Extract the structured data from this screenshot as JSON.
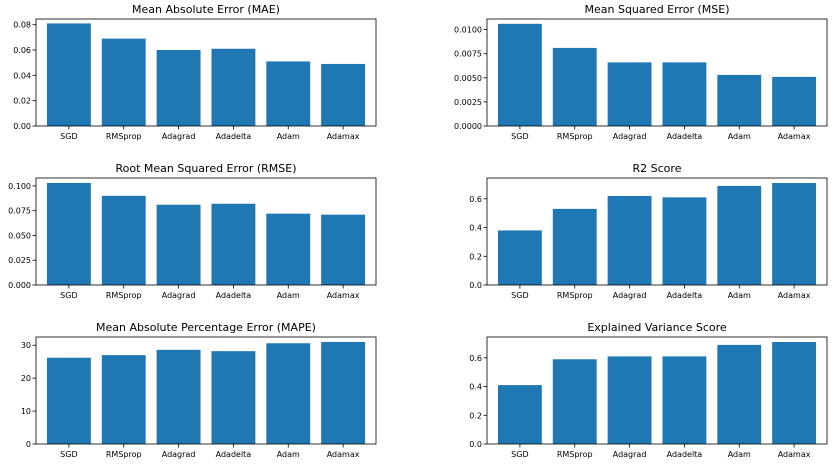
{
  "chart_data": [
    {
      "type": "bar",
      "title": "Mean Absolute Error (MAE)",
      "categories": [
        "SGD",
        "RMSprop",
        "Adagrad",
        "Adadelta",
        "Adam",
        "Adamax"
      ],
      "values": [
        0.081,
        0.069,
        0.06,
        0.061,
        0.051,
        0.049
      ],
      "ylim": [
        0,
        0.0845
      ],
      "yticks": [
        0.0,
        0.02,
        0.04,
        0.06,
        0.08
      ],
      "ytick_labels": [
        "0.00",
        "0.02",
        "0.04",
        "0.06",
        "0.08"
      ],
      "color": "#1f77b4",
      "xlabel": "",
      "ylabel": ""
    },
    {
      "type": "bar",
      "title": "Mean Squared Error (MSE)",
      "categories": [
        "SGD",
        "RMSprop",
        "Adagrad",
        "Adadelta",
        "Adam",
        "Adamax"
      ],
      "values": [
        0.0106,
        0.0081,
        0.0066,
        0.0066,
        0.0053,
        0.0051
      ],
      "ylim": [
        0,
        0.0111
      ],
      "yticks": [
        0.0,
        0.0025,
        0.005,
        0.0075,
        0.01
      ],
      "ytick_labels": [
        "0.0000",
        "0.0025",
        "0.0050",
        "0.0075",
        "0.0100"
      ],
      "color": "#1f77b4",
      "xlabel": "",
      "ylabel": ""
    },
    {
      "type": "bar",
      "title": "Root Mean Squared Error (RMSE)",
      "categories": [
        "SGD",
        "RMSprop",
        "Adagrad",
        "Adadelta",
        "Adam",
        "Adamax"
      ],
      "values": [
        0.103,
        0.09,
        0.081,
        0.082,
        0.072,
        0.071
      ],
      "ylim": [
        0,
        0.108
      ],
      "yticks": [
        0.0,
        0.025,
        0.05,
        0.075,
        0.1
      ],
      "ytick_labels": [
        "0.000",
        "0.025",
        "0.050",
        "0.075",
        "0.100"
      ],
      "color": "#1f77b4",
      "xlabel": "",
      "ylabel": ""
    },
    {
      "type": "bar",
      "title": "R2 Score",
      "categories": [
        "SGD",
        "RMSprop",
        "Adagrad",
        "Adadelta",
        "Adam",
        "Adamax"
      ],
      "values": [
        0.38,
        0.53,
        0.62,
        0.61,
        0.69,
        0.71
      ],
      "ylim": [
        0,
        0.745
      ],
      "yticks": [
        0.0,
        0.2,
        0.4,
        0.6
      ],
      "ytick_labels": [
        "0.0",
        "0.2",
        "0.4",
        "0.6"
      ],
      "color": "#1f77b4",
      "xlabel": "",
      "ylabel": ""
    },
    {
      "type": "bar",
      "title": "Mean Absolute Percentage Error (MAPE)",
      "categories": [
        "SGD",
        "RMSprop",
        "Adagrad",
        "Adadelta",
        "Adam",
        "Adamax"
      ],
      "values": [
        26.2,
        27.0,
        28.6,
        28.2,
        30.6,
        31.0
      ],
      "ylim": [
        0,
        32.5
      ],
      "yticks": [
        0,
        10,
        20,
        30
      ],
      "ytick_labels": [
        "0",
        "10",
        "20",
        "30"
      ],
      "color": "#1f77b4",
      "xlabel": "",
      "ylabel": ""
    },
    {
      "type": "bar",
      "title": "Explained Variance Score",
      "categories": [
        "SGD",
        "RMSprop",
        "Adagrad",
        "Adadelta",
        "Adam",
        "Adamax"
      ],
      "values": [
        0.41,
        0.59,
        0.61,
        0.61,
        0.69,
        0.71
      ],
      "ylim": [
        0,
        0.745
      ],
      "yticks": [
        0.0,
        0.2,
        0.4,
        0.6
      ],
      "ytick_labels": [
        "0.0",
        "0.2",
        "0.4",
        "0.6"
      ],
      "color": "#1f77b4",
      "xlabel": "",
      "ylabel": ""
    }
  ]
}
